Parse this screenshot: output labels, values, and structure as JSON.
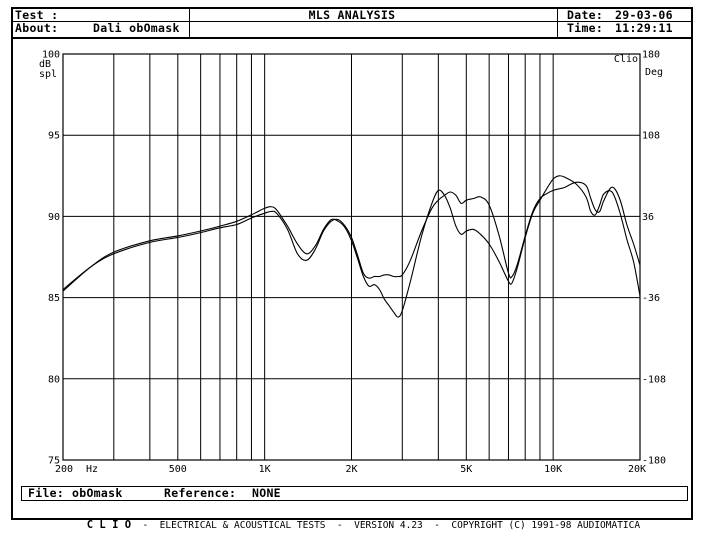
{
  "header": {
    "test_label": "Test :",
    "title": "MLS ANALYSIS",
    "date_label": "Date:",
    "date_value": "29-03-06",
    "about_label": "About:",
    "about_value": "Dali obOmask",
    "time_label": "Time:",
    "time_value": "11:29:11"
  },
  "file_line": {
    "file_label": "File:",
    "file_value": "obOmask",
    "reference_label": "Reference:",
    "reference_value": "NONE"
  },
  "footer": {
    "brand": "C L I O",
    "text": "ELECTRICAL & ACOUSTICAL TESTS  -  VERSION 4.23  -  COPYRIGHT (C) 1991-98 AUDIOMATICA"
  },
  "chart_data": {
    "type": "line",
    "x_scale": "log",
    "xlim": [
      200,
      20000
    ],
    "ylim": [
      75,
      100
    ],
    "y2lim": [
      -180,
      180
    ],
    "ylabel": "dB spl",
    "y2label": "Deg",
    "corner_label": "Clio",
    "grid": true,
    "x_ticks": [
      {
        "value": 200,
        "label": "200"
      },
      {
        "value": 500,
        "label": "500"
      },
      {
        "value": 1000,
        "label": "1K"
      },
      {
        "value": 2000,
        "label": "2K"
      },
      {
        "value": 5000,
        "label": "5K"
      },
      {
        "value": 10000,
        "label": "10K"
      },
      {
        "value": 20000,
        "label": "20K"
      }
    ],
    "x_unit_label": "Hz",
    "y_ticks": [
      75,
      80,
      85,
      90,
      95,
      100
    ],
    "y2_ticks": [
      -180,
      -108,
      -36,
      36,
      108,
      180
    ],
    "series": [
      {
        "x": [
          200,
          250,
          300,
          400,
          500,
          600,
          700,
          800,
          900,
          1000,
          1050,
          1100,
          1200,
          1300,
          1400,
          1500,
          1600,
          1700,
          1800,
          1900,
          2000,
          2100,
          2200,
          2300,
          2400,
          2500,
          2600,
          2700,
          2800,
          2900,
          3000,
          3200,
          3500,
          3800,
          4000,
          4200,
          4400,
          4600,
          4800,
          5000,
          5300,
          5600,
          6000,
          6500,
          7000,
          7200,
          7500,
          8000,
          8500,
          9000,
          9500,
          10000,
          10500,
          11000,
          12000,
          13000,
          13500,
          14000,
          14500,
          15000,
          16000,
          17000,
          18000,
          19000,
          20000
        ],
        "y": [
          85.4,
          86.9,
          87.8,
          88.5,
          88.8,
          89.1,
          89.4,
          89.7,
          90.1,
          90.5,
          90.6,
          90.4,
          89.4,
          88.3,
          87.7,
          88.2,
          89.2,
          89.8,
          89.7,
          89.3,
          88.5,
          87.4,
          86.3,
          85.7,
          85.8,
          85.5,
          84.9,
          84.5,
          84.1,
          83.8,
          84.2,
          86.0,
          88.8,
          90.8,
          91.6,
          91.3,
          90.5,
          89.4,
          88.9,
          89.1,
          89.2,
          88.9,
          88.3,
          87.2,
          86.0,
          85.9,
          86.8,
          88.7,
          90.2,
          91.0,
          91.7,
          92.3,
          92.5,
          92.4,
          92.0,
          91.2,
          90.3,
          90.1,
          90.7,
          91.4,
          91.5,
          90.3,
          88.6,
          87.2,
          85.1
        ]
      },
      {
        "x": [
          200,
          250,
          300,
          400,
          500,
          600,
          700,
          800,
          900,
          1000,
          1050,
          1100,
          1200,
          1300,
          1400,
          1500,
          1600,
          1700,
          1800,
          1900,
          2000,
          2100,
          2200,
          2300,
          2400,
          2500,
          2600,
          2700,
          2800,
          2900,
          3000,
          3200,
          3500,
          3800,
          4000,
          4200,
          4400,
          4600,
          4800,
          5000,
          5300,
          5600,
          6000,
          6500,
          7000,
          7200,
          7500,
          8000,
          8500,
          9000,
          9500,
          10000,
          10500,
          11000,
          12000,
          13000,
          13500,
          14000,
          14500,
          15000,
          16000,
          17000,
          18000,
          19000,
          20000
        ],
        "y": [
          85.5,
          86.9,
          87.7,
          88.4,
          88.7,
          89.0,
          89.3,
          89.5,
          89.9,
          90.2,
          90.3,
          90.2,
          89.2,
          87.7,
          87.3,
          88.0,
          89.1,
          89.7,
          89.8,
          89.4,
          88.7,
          87.6,
          86.5,
          86.2,
          86.3,
          86.3,
          86.4,
          86.4,
          86.3,
          86.3,
          86.4,
          87.3,
          89.1,
          90.5,
          91.0,
          91.3,
          91.5,
          91.3,
          90.8,
          91.0,
          91.1,
          91.2,
          90.7,
          88.8,
          86.5,
          86.3,
          87.0,
          88.8,
          90.3,
          91.1,
          91.4,
          91.6,
          91.7,
          91.8,
          92.1,
          91.9,
          91.1,
          90.4,
          90.3,
          91.0,
          91.8,
          91.1,
          89.5,
          88.3,
          87.0
        ]
      }
    ]
  }
}
